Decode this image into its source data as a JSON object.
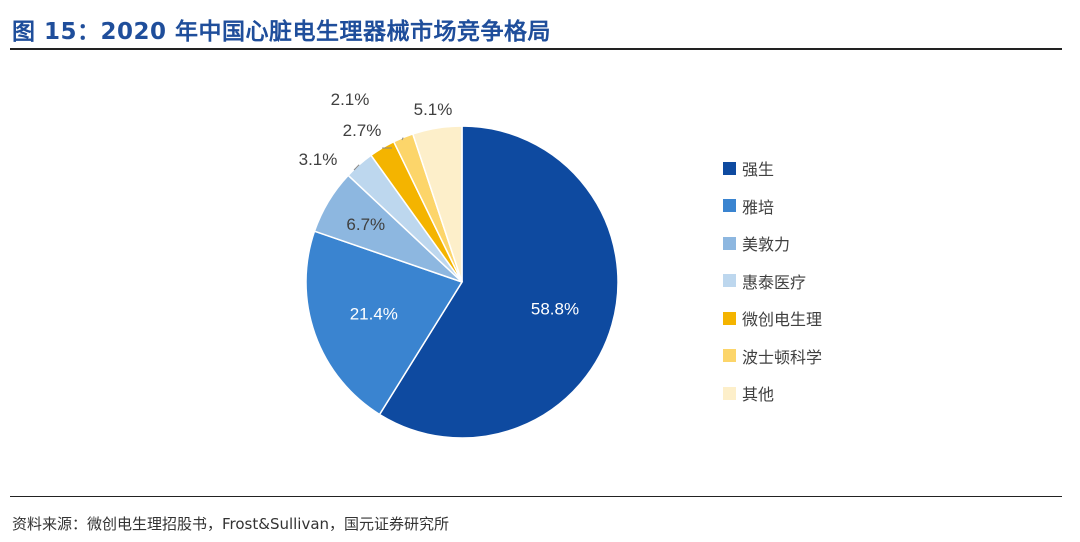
{
  "header": {
    "title": "图 15：2020 年中国心脏电生理器械市场竞争格局"
  },
  "footer": {
    "source": "资料来源：微创电生理招股书，Frost&Sullivan，国元证券研究所"
  },
  "chart_data": {
    "type": "pie",
    "title": "",
    "legend_position": "right",
    "slices": [
      {
        "name": "强生",
        "value": 58.8,
        "label": "58.8%",
        "color": "#0e4aa0"
      },
      {
        "name": "雅培",
        "value": 21.4,
        "label": "21.4%",
        "color": "#3a84d0"
      },
      {
        "name": "美敦力",
        "value": 6.7,
        "label": "6.7%",
        "color": "#8db7e0"
      },
      {
        "name": "惠泰医疗",
        "value": 3.1,
        "label": "3.1%",
        "color": "#bdd7ee"
      },
      {
        "name": "微创电生理",
        "value": 2.7,
        "label": "2.7%",
        "color": "#f4b400"
      },
      {
        "name": "波士顿科学",
        "value": 2.1,
        "label": "2.1%",
        "color": "#fcd56a"
      },
      {
        "name": "其他",
        "value": 5.1,
        "label": "5.1%",
        "color": "#fdefca"
      }
    ]
  }
}
